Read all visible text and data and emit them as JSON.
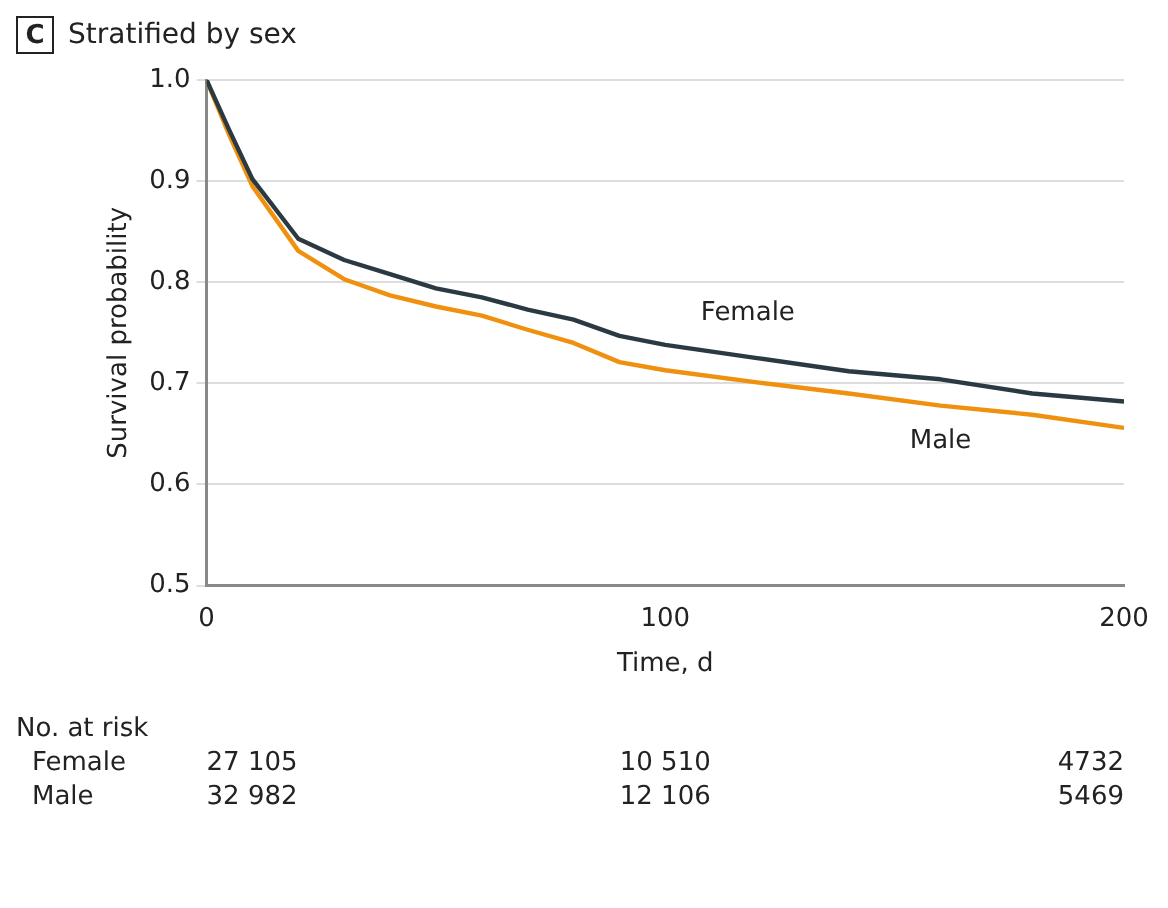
{
  "chart_data": {
    "type": "line",
    "title": "Stratified by sex",
    "xlabel": "Time, d",
    "ylabel": "Survival probability",
    "xlim": [
      0,
      200
    ],
    "xticks": [
      0,
      100,
      200
    ],
    "ylim": [
      0.5,
      1.0
    ],
    "yticks": [
      {
        "value": 0.5,
        "label": "0.5"
      },
      {
        "value": 0.6,
        "label": "0.6"
      },
      {
        "value": 0.7,
        "label": "0.7"
      },
      {
        "value": 0.8,
        "label": "0.8"
      },
      {
        "value": 0.9,
        "label": "0.9"
      },
      {
        "value": 1.0,
        "label": "1.0"
      }
    ],
    "grid": "y",
    "legend": false,
    "marker": "none",
    "line_style": "solid",
    "series": [
      {
        "name": "Female",
        "color": "#2b3a42",
        "x": [
          0,
          5,
          10,
          20,
          30,
          40,
          50,
          60,
          70,
          80,
          90,
          100,
          120,
          140,
          160,
          180,
          200
        ],
        "values": [
          1.0,
          0.95,
          0.902,
          0.843,
          0.822,
          0.808,
          0.794,
          0.785,
          0.773,
          0.763,
          0.747,
          0.738,
          0.725,
          0.712,
          0.704,
          0.69,
          0.682
        ]
      },
      {
        "name": "Male",
        "color": "#f0900f",
        "x": [
          0,
          5,
          10,
          20,
          30,
          40,
          50,
          60,
          70,
          80,
          90,
          100,
          120,
          140,
          160,
          180,
          200
        ],
        "values": [
          1.0,
          0.945,
          0.895,
          0.831,
          0.803,
          0.787,
          0.776,
          0.767,
          0.753,
          0.74,
          0.721,
          0.713,
          0.701,
          0.69,
          0.678,
          0.669,
          0.656
        ]
      }
    ],
    "annotations": [
      "C",
      "No. at risk",
      "Female",
      "27 105",
      "10 510",
      "4732",
      "Male",
      "32 982",
      "12 106",
      "5469"
    ]
  }
}
